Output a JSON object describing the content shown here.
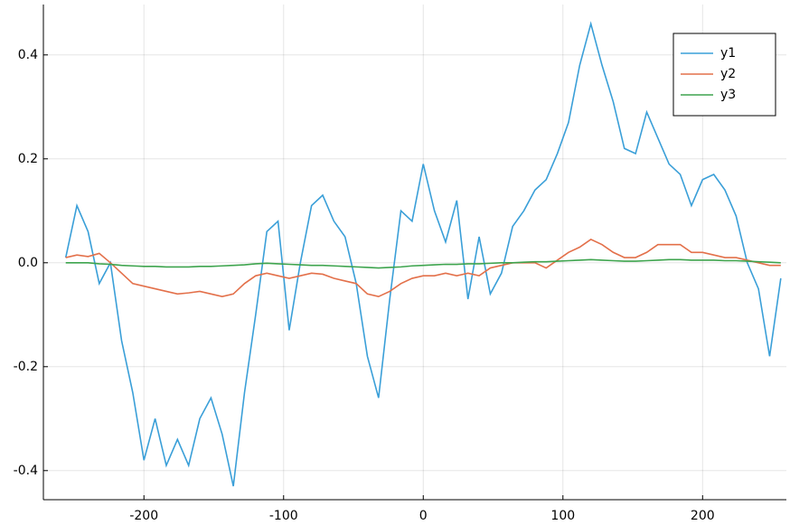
{
  "chart_data": {
    "type": "line",
    "x": [
      -256,
      -248,
      -240,
      -232,
      -224,
      -216,
      -208,
      -200,
      -192,
      -184,
      -176,
      -168,
      -160,
      -152,
      -144,
      -136,
      -128,
      -120,
      -112,
      -104,
      -96,
      -88,
      -80,
      -72,
      -64,
      -56,
      -48,
      -40,
      -32,
      -24,
      -16,
      -8,
      0,
      8,
      16,
      24,
      32,
      40,
      48,
      56,
      64,
      72,
      80,
      88,
      96,
      104,
      112,
      120,
      128,
      136,
      144,
      152,
      160,
      168,
      176,
      184,
      192,
      200,
      208,
      216,
      224,
      232,
      240,
      248,
      256
    ],
    "series": [
      {
        "name": "y1",
        "color": "#3a9fd8",
        "values": [
          0.01,
          0.11,
          0.06,
          -0.04,
          0.0,
          -0.15,
          -0.25,
          -0.38,
          -0.3,
          -0.39,
          -0.34,
          -0.39,
          -0.3,
          -0.26,
          -0.33,
          -0.43,
          -0.25,
          -0.1,
          0.06,
          0.08,
          -0.13,
          0.0,
          0.11,
          0.13,
          0.08,
          0.05,
          -0.04,
          -0.18,
          -0.26,
          -0.07,
          0.1,
          0.08,
          0.19,
          0.1,
          0.04,
          0.12,
          -0.07,
          0.05,
          -0.06,
          -0.02,
          0.07,
          0.1,
          0.14,
          0.16,
          0.21,
          0.27,
          0.38,
          0.46,
          0.38,
          0.31,
          0.22,
          0.21,
          0.29,
          0.24,
          0.19,
          0.17,
          0.11,
          0.16,
          0.17,
          0.14,
          0.09,
          0.0,
          -0.05,
          -0.18,
          -0.03
        ]
      },
      {
        "name": "y2",
        "color": "#e3704a",
        "values": [
          0.01,
          0.015,
          0.012,
          0.018,
          0.0,
          -0.02,
          -0.04,
          -0.045,
          -0.05,
          -0.055,
          -0.06,
          -0.058,
          -0.055,
          -0.06,
          -0.065,
          -0.06,
          -0.04,
          -0.025,
          -0.02,
          -0.025,
          -0.03,
          -0.025,
          -0.02,
          -0.022,
          -0.03,
          -0.035,
          -0.04,
          -0.06,
          -0.065,
          -0.055,
          -0.04,
          -0.03,
          -0.025,
          -0.025,
          -0.02,
          -0.025,
          -0.02,
          -0.025,
          -0.01,
          -0.005,
          0.0,
          0.0,
          0.0,
          -0.01,
          0.005,
          0.02,
          0.03,
          0.045,
          0.035,
          0.02,
          0.01,
          0.01,
          0.02,
          0.035,
          0.035,
          0.035,
          0.02,
          0.02,
          0.015,
          0.01,
          0.01,
          0.005,
          0.0,
          -0.005,
          -0.005
        ]
      },
      {
        "name": "y3",
        "color": "#3ea44e",
        "values": [
          0.0,
          0.0,
          0.0,
          -0.002,
          -0.003,
          -0.005,
          -0.006,
          -0.007,
          -0.007,
          -0.008,
          -0.008,
          -0.008,
          -0.007,
          -0.007,
          -0.006,
          -0.005,
          -0.004,
          -0.002,
          -0.001,
          -0.002,
          -0.003,
          -0.004,
          -0.005,
          -0.005,
          -0.006,
          -0.007,
          -0.008,
          -0.009,
          -0.01,
          -0.009,
          -0.008,
          -0.006,
          -0.005,
          -0.004,
          -0.003,
          -0.003,
          -0.002,
          -0.002,
          -0.001,
          0.0,
          0.0,
          0.001,
          0.002,
          0.002,
          0.003,
          0.004,
          0.005,
          0.006,
          0.005,
          0.004,
          0.003,
          0.003,
          0.004,
          0.005,
          0.006,
          0.006,
          0.005,
          0.005,
          0.005,
          0.004,
          0.004,
          0.003,
          0.002,
          0.001,
          0.0
        ]
      }
    ],
    "xlim": [
      -272,
      260
    ],
    "xticks": [
      -200,
      -100,
      0,
      100,
      200
    ],
    "ylim": [
      -0.456,
      0.497
    ],
    "yticks": [
      0.4,
      0.2,
      {
        "value": 0,
        "label": "0.0"
      },
      -0.2,
      -0.4
    ],
    "grid": true,
    "legend": "top right"
  }
}
